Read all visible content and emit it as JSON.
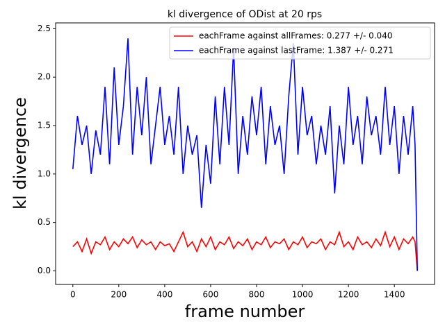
{
  "chart_data": {
    "type": "line",
    "title": "kl divergence of ODist at 20 rps",
    "xlabel": "frame number",
    "ylabel": "kl divergence",
    "x": [
      0,
      20,
      40,
      60,
      80,
      100,
      120,
      140,
      160,
      180,
      200,
      220,
      240,
      260,
      280,
      300,
      320,
      340,
      360,
      380,
      400,
      420,
      440,
      460,
      480,
      500,
      520,
      540,
      560,
      580,
      600,
      620,
      640,
      660,
      680,
      700,
      720,
      740,
      760,
      780,
      800,
      820,
      840,
      860,
      880,
      900,
      920,
      940,
      960,
      980,
      1000,
      1020,
      1040,
      1060,
      1080,
      1100,
      1120,
      1140,
      1160,
      1180,
      1200,
      1220,
      1240,
      1260,
      1280,
      1300,
      1320,
      1340,
      1360,
      1380,
      1400,
      1420,
      1440,
      1460,
      1480,
      1490,
      1500
    ],
    "series": [
      {
        "name": "eachFrame against allFrames: 0.277 +/- 0.040",
        "color": "#ff0000",
        "values": [
          0.25,
          0.3,
          0.2,
          0.33,
          0.18,
          0.3,
          0.27,
          0.35,
          0.22,
          0.3,
          0.25,
          0.33,
          0.28,
          0.35,
          0.24,
          0.32,
          0.27,
          0.3,
          0.22,
          0.3,
          0.26,
          0.28,
          0.2,
          0.3,
          0.4,
          0.25,
          0.3,
          0.2,
          0.33,
          0.25,
          0.35,
          0.22,
          0.3,
          0.27,
          0.35,
          0.23,
          0.3,
          0.26,
          0.33,
          0.22,
          0.3,
          0.27,
          0.35,
          0.24,
          0.3,
          0.28,
          0.33,
          0.22,
          0.3,
          0.27,
          0.35,
          0.24,
          0.3,
          0.28,
          0.33,
          0.22,
          0.3,
          0.27,
          0.4,
          0.25,
          0.3,
          0.22,
          0.35,
          0.27,
          0.3,
          0.24,
          0.33,
          0.26,
          0.4,
          0.25,
          0.35,
          0.22,
          0.33,
          0.28,
          0.35,
          0.3,
          0.0
        ]
      },
      {
        "name": "eachFrame against lastFrame: 1.387 +/- 0.271",
        "color": "#0000ff",
        "values": [
          1.05,
          1.6,
          1.3,
          1.5,
          1.0,
          1.45,
          1.2,
          1.9,
          1.1,
          2.1,
          1.3,
          1.7,
          2.4,
          1.2,
          1.9,
          1.4,
          2.0,
          1.1,
          1.5,
          1.9,
          1.3,
          1.6,
          1.2,
          1.9,
          1.0,
          1.5,
          1.2,
          1.4,
          0.65,
          1.3,
          0.9,
          1.8,
          1.1,
          1.9,
          1.3,
          2.3,
          1.0,
          1.6,
          1.2,
          1.8,
          1.4,
          1.9,
          1.1,
          1.7,
          1.3,
          1.5,
          1.0,
          1.8,
          2.35,
          1.2,
          1.9,
          1.4,
          1.6,
          1.1,
          1.5,
          1.2,
          1.7,
          0.8,
          1.5,
          1.1,
          1.9,
          1.3,
          1.6,
          1.1,
          1.8,
          1.4,
          1.6,
          1.2,
          1.9,
          1.3,
          1.7,
          1.0,
          1.6,
          1.2,
          1.7,
          1.3,
          0.0
        ]
      }
    ],
    "xlim": [
      -75,
      1575
    ],
    "xticks": [
      0,
      200,
      400,
      600,
      800,
      1000,
      1200,
      1400
    ],
    "ylim": [
      -0.14,
      2.56
    ],
    "yticks": [
      {
        "value": 0,
        "label": "0.0"
      },
      0.5,
      {
        "value": 1,
        "label": "1.0"
      },
      1.5,
      {
        "value": 2,
        "label": "2.0"
      },
      2.5
    ],
    "legend": "upper right"
  }
}
